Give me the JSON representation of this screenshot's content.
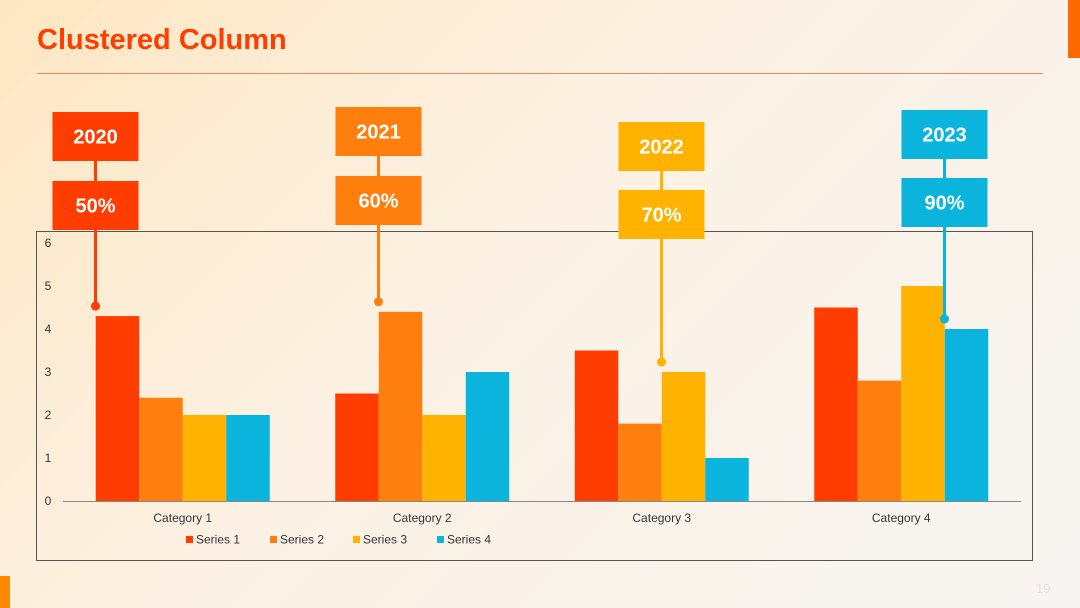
{
  "slide": {
    "title": "Clustered Column",
    "page_number": "19",
    "colors": {
      "title": "#ff3d00",
      "accent": "#ff6a00"
    }
  },
  "chart_data": {
    "type": "bar",
    "categories": [
      "Category 1",
      "Category 2",
      "Category 3",
      "Category 4"
    ],
    "series": [
      {
        "name": "Series 1",
        "values": [
          4.3,
          2.5,
          3.5,
          4.5
        ],
        "color": "#ff3d00"
      },
      {
        "name": "Series 2",
        "values": [
          2.4,
          4.4,
          1.8,
          2.8
        ],
        "color": "#ff7f0e"
      },
      {
        "name": "Series 3",
        "values": [
          2,
          2,
          3,
          5
        ],
        "color": "#ffb300"
      },
      {
        "name": "Series 4",
        "values": [
          2,
          3,
          1,
          4
        ],
        "color": "#0ab4dc"
      }
    ],
    "ylim": [
      0,
      6
    ],
    "yticks": [
      0,
      1,
      2,
      3,
      4,
      5,
      6
    ],
    "grid": false,
    "legend": "bottom",
    "callouts": [
      {
        "year": "2020",
        "percent": "50%",
        "category_index": 0,
        "series_index": 0
      },
      {
        "year": "2021",
        "percent": "60%",
        "category_index": 1,
        "series_index": 1
      },
      {
        "year": "2022",
        "percent": "70%",
        "category_index": 2,
        "series_index": 2
      },
      {
        "year": "2023",
        "percent": "90%",
        "category_index": 3,
        "series_index": 3
      }
    ]
  }
}
